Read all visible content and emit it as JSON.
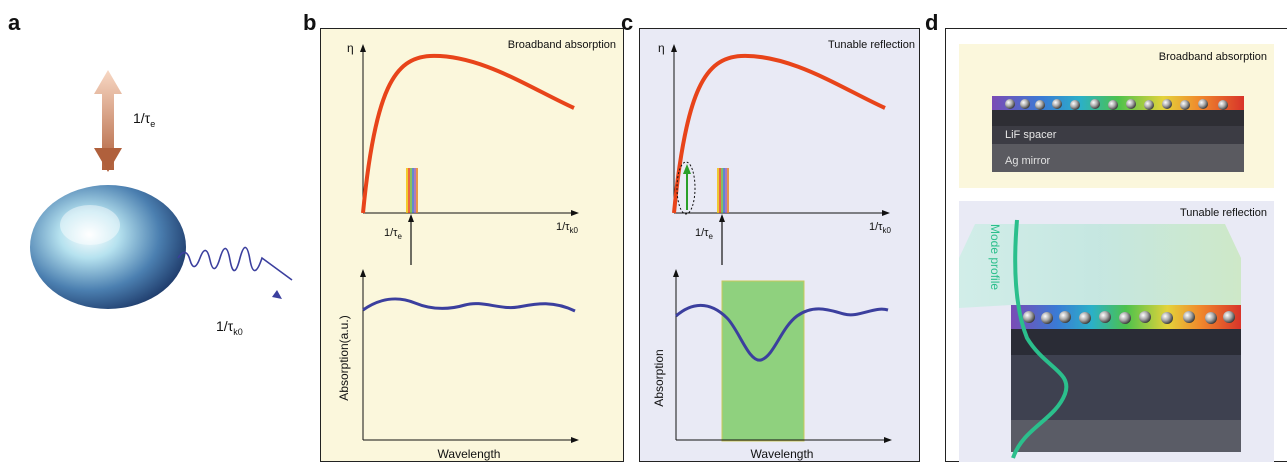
{
  "panels": {
    "a": {
      "letter": "a",
      "tau_e_main": "1/τ",
      "tau_e_sub": "e",
      "tau_k0_main": "1/τ",
      "tau_k0_sub": "k0"
    },
    "b": {
      "letter": "b",
      "title": "Broadband absorption",
      "eta": "η",
      "tau_e_main": "1/τ",
      "tau_e_sub": "e",
      "tau_k0_main": "1/τ",
      "tau_k0_sub": "k0",
      "ylabel": "Absorption(a.u.)",
      "xlabel": "Wavelength"
    },
    "c": {
      "letter": "c",
      "title": "Tunable reflection",
      "eta": "η",
      "tau_e_main": "1/τ",
      "tau_e_sub": "e",
      "tau_k0_main": "1/τ",
      "tau_k0_sub": "k0",
      "ylabel": "Absorption",
      "xlabel": "Wavelength"
    },
    "d": {
      "letter": "d",
      "top_title": "Broadband absorption",
      "lif_label": "LiF spacer",
      "ag_label": "Ag mirror",
      "bottom_title": "Tunable reflection",
      "mode_label": "Mode profile"
    }
  },
  "colors": {
    "panel_b_bg": "#fbf7dc",
    "panel_c_bg": "#e9eaf5",
    "curve_red": "#e8441a",
    "curve_blue": "#3b3f9e",
    "green_band": "#8fd17e",
    "mode_teal": "#2bbf8c"
  }
}
